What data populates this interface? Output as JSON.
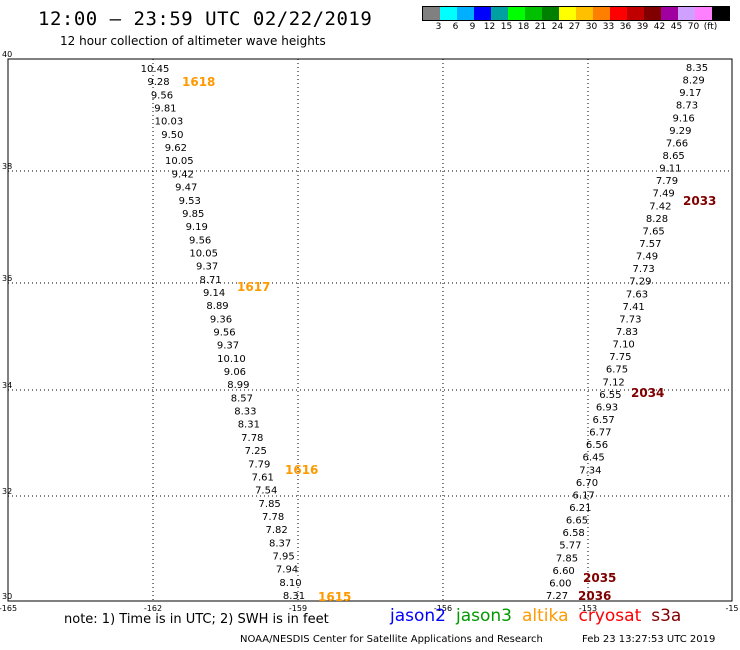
{
  "header": {
    "title": "12:00 – 23:59 UTC 02/22/2019",
    "subtitle": "12 hour collection of altimeter wave heights"
  },
  "color_scale": {
    "colors": [
      "#808080",
      "#00ffff",
      "#00b0ff",
      "#0000ff",
      "#00a0a0",
      "#00ff00",
      "#00c000",
      "#008000",
      "#ffff00",
      "#ffc000",
      "#ff8000",
      "#ff0000",
      "#c00000",
      "#800000",
      "#a000a0",
      "#d0a0ff",
      "#ff80ff",
      "#000000"
    ],
    "labels": [
      "3",
      "6",
      "9",
      "12",
      "15",
      "18",
      "21",
      "24",
      "27",
      "30",
      "33",
      "36",
      "39",
      "42",
      "45",
      "70",
      "(ft)"
    ]
  },
  "axes": {
    "lon_ticks": [
      "-165",
      "-162",
      "-159",
      "-156",
      "-153",
      "-15"
    ],
    "lat_ticks": [
      "40",
      "38",
      "36",
      "34",
      "32",
      "30"
    ]
  },
  "orbits": [
    {
      "label": "1618",
      "color": "#ff9900"
    },
    {
      "label": "1617",
      "color": "#ff9900"
    },
    {
      "label": "1616",
      "color": "#ff9900"
    },
    {
      "label": "1615",
      "color": "#ff9900"
    },
    {
      "label": "2033",
      "color": "#800000"
    },
    {
      "label": "2034",
      "color": "#800000"
    },
    {
      "label": "2035",
      "color": "#800000"
    },
    {
      "label": "2036",
      "color": "#800000"
    }
  ],
  "track_west": [
    {
      "v": "10.45",
      "c": "#0000cc"
    },
    {
      "v": "9.28",
      "c": "#0000cc"
    },
    {
      "v": "9.56",
      "c": "#0000cc"
    },
    {
      "v": "9.81",
      "c": "#0000cc"
    },
    {
      "v": "10.03",
      "c": "#0000cc"
    },
    {
      "v": "9.50",
      "c": "#0000cc"
    },
    {
      "v": "9.62",
      "c": "#0000cc"
    },
    {
      "v": "10.05",
      "c": "#0000cc"
    },
    {
      "v": "9.42",
      "c": "#0000cc"
    },
    {
      "v": "9.47",
      "c": "#0000cc"
    },
    {
      "v": "9.53",
      "c": "#0000cc"
    },
    {
      "v": "9.85",
      "c": "#0000cc"
    },
    {
      "v": "9.19",
      "c": "#0000cc"
    },
    {
      "v": "9.56",
      "c": "#0000cc"
    },
    {
      "v": "10.05",
      "c": "#0000cc"
    },
    {
      "v": "9.37",
      "c": "#0000cc"
    },
    {
      "v": "8.71",
      "c": "#00aaee"
    },
    {
      "v": "9.14",
      "c": "#0000cc"
    },
    {
      "v": "8.89",
      "c": "#00aaee"
    },
    {
      "v": "9.36",
      "c": "#0000cc"
    },
    {
      "v": "9.56",
      "c": "#0000cc"
    },
    {
      "v": "9.37",
      "c": "#0000cc"
    },
    {
      "v": "10.10",
      "c": "#0000cc"
    },
    {
      "v": "9.06",
      "c": "#0000cc"
    },
    {
      "v": "8.99",
      "c": "#00aaee"
    },
    {
      "v": "8.57",
      "c": "#00aaee"
    },
    {
      "v": "8.33",
      "c": "#00aaee"
    },
    {
      "v": "8.31",
      "c": "#00aaee"
    },
    {
      "v": "7.78",
      "c": "#00aaee"
    },
    {
      "v": "7.25",
      "c": "#00aaee"
    },
    {
      "v": "7.79",
      "c": "#00aaee"
    },
    {
      "v": "7.61",
      "c": "#00aaee"
    },
    {
      "v": "7.54",
      "c": "#00aaee"
    },
    {
      "v": "7.85",
      "c": "#00aaee"
    },
    {
      "v": "7.78",
      "c": "#00aaee"
    },
    {
      "v": "7.82",
      "c": "#00aaee"
    },
    {
      "v": "8.37",
      "c": "#00aaee"
    },
    {
      "v": "7.95",
      "c": "#00aaee"
    },
    {
      "v": "7.94",
      "c": "#00aaee"
    },
    {
      "v": "8.10",
      "c": "#00aaee"
    },
    {
      "v": "8.31",
      "c": "#00aaee"
    }
  ],
  "track_east": [
    {
      "v": "8.35",
      "c": "#00aaee"
    },
    {
      "v": "8.29",
      "c": "#00aaee"
    },
    {
      "v": "9.17",
      "c": "#0000cc"
    },
    {
      "v": "8.73",
      "c": "#00aaee"
    },
    {
      "v": "9.16",
      "c": "#0000cc"
    },
    {
      "v": "9.29",
      "c": "#0000cc"
    },
    {
      "v": "7.66",
      "c": "#00aaee"
    },
    {
      "v": "8.65",
      "c": "#00aaee"
    },
    {
      "v": "9.11",
      "c": "#0000cc"
    },
    {
      "v": "7.79",
      "c": "#00aaee"
    },
    {
      "v": "7.49",
      "c": "#00aaee"
    },
    {
      "v": "7.42",
      "c": "#00aaee"
    },
    {
      "v": "8.28",
      "c": "#00aaee"
    },
    {
      "v": "7.65",
      "c": "#00aaee"
    },
    {
      "v": "7.57",
      "c": "#00aaee"
    },
    {
      "v": "7.49",
      "c": "#00aaee"
    },
    {
      "v": "7.73",
      "c": "#00aaee"
    },
    {
      "v": "7.29",
      "c": "#00aaee"
    },
    {
      "v": "7.63",
      "c": "#00aaee"
    },
    {
      "v": "7.41",
      "c": "#00aaee"
    },
    {
      "v": "7.73",
      "c": "#00aaee"
    },
    {
      "v": "7.83",
      "c": "#00aaee"
    },
    {
      "v": "7.10",
      "c": "#00aaee"
    },
    {
      "v": "7.75",
      "c": "#00aaee"
    },
    {
      "v": "6.75",
      "c": "#00aaee"
    },
    {
      "v": "7.12",
      "c": "#00aaee"
    },
    {
      "v": "6.55",
      "c": "#00aaee"
    },
    {
      "v": "6.93",
      "c": "#00aaee"
    },
    {
      "v": "6.57",
      "c": "#00aaee"
    },
    {
      "v": "6.77",
      "c": "#00aaee"
    },
    {
      "v": "6.56",
      "c": "#00aaee"
    },
    {
      "v": "6.45",
      "c": "#00aaee"
    },
    {
      "v": "7.34",
      "c": "#00aaee"
    },
    {
      "v": "6.70",
      "c": "#00aaee"
    },
    {
      "v": "6.17",
      "c": "#00aaee"
    },
    {
      "v": "6.21",
      "c": "#00aaee"
    },
    {
      "v": "6.65",
      "c": "#00aaee"
    },
    {
      "v": "6.58",
      "c": "#00aaee"
    },
    {
      "v": "5.77",
      "c": "#00aaee"
    },
    {
      "v": "7.85",
      "c": "#00aaee"
    },
    {
      "v": "6.60",
      "c": "#00aaee"
    },
    {
      "v": "6.00",
      "c": "#00aaee"
    },
    {
      "v": "7.27",
      "c": "#00aaee"
    }
  ],
  "note": "note: 1) Time is in UTC; 2) SWH is in feet",
  "legend": [
    {
      "label": "jason2",
      "color": "#0000ff"
    },
    {
      "label": "jason3",
      "color": "#009900"
    },
    {
      "label": "altika",
      "color": "#ff9900"
    },
    {
      "label": "cryosat",
      "color": "#ff0000"
    },
    {
      "label": "s3a",
      "color": "#800000"
    }
  ],
  "footer": {
    "credit": "NOAA/NESDIS Center for Satellite Applications and Research",
    "timestamp": "Feb 23 13:27:53 UTC 2019"
  }
}
